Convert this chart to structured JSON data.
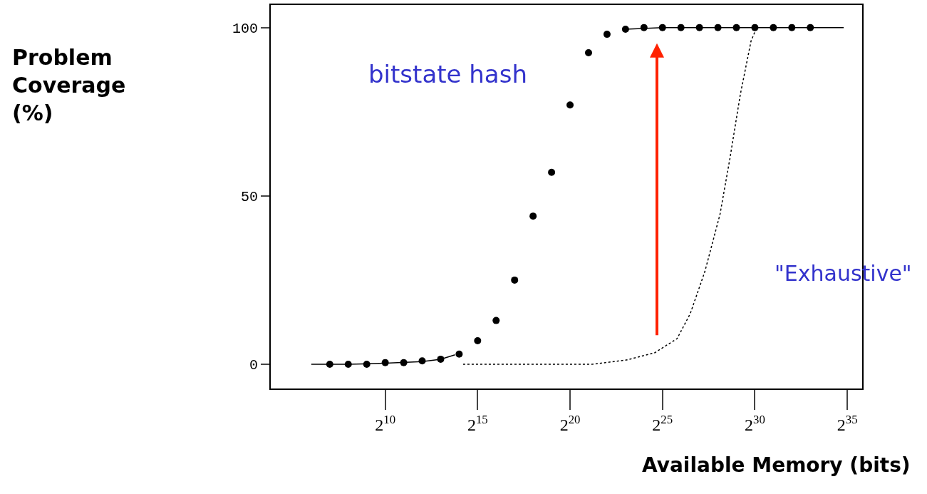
{
  "chart_data": {
    "type": "scatter",
    "xlabel": "Available Memory (bits)",
    "ylabel": "Problem\nCoverage\n(%)",
    "log": "x",
    "xlim": [
      14,
      60000000000
    ],
    "ylim": [
      -7.2,
      106.7
    ],
    "xticks": [
      {
        "value": 1024,
        "label": "2$^{10}$"
      },
      {
        "value": 32768,
        "label": "2$^{15}$"
      },
      {
        "value": 1048576,
        "label": "2$^{20}$"
      },
      {
        "value": 33554432,
        "label": "2$^{25}$"
      },
      {
        "value": 1073741824,
        "label": "2$^{30}$"
      },
      {
        "value": 34359738368,
        "label": "2$^{35}$"
      }
    ],
    "yticks": [
      0,
      50,
      100
    ],
    "series": [
      {
        "type": "line",
        "color": "#000000",
        "line_style": "solid",
        "marker": "none",
        "x": [
          64,
          256,
          1024,
          4096,
          8192,
          14000,
          6800000,
          8388608,
          33554432,
          1073741824,
          30000000000
        ],
        "values": [
          0,
          0,
          0.3,
          0.8,
          1.5,
          2.8,
          null,
          99.5,
          100,
          100,
          100
        ]
      },
      {
        "color": "#000000",
        "marker": "circle",
        "x": [
          128,
          256,
          512,
          1024,
          2048,
          4096,
          8192,
          16384,
          32768,
          65536,
          131072,
          262144,
          524288,
          1048576,
          2097152,
          4194304,
          8388608,
          16777216,
          33554432,
          67108864,
          134217728,
          268435456,
          536870912,
          1073741824,
          2147483648,
          4294967296,
          8589934592
        ],
        "values": [
          0,
          0,
          0,
          0.5,
          0.5,
          1,
          1.5,
          3,
          7,
          13,
          25,
          44,
          57,
          77,
          92.5,
          98,
          99.5,
          100,
          100,
          100,
          100,
          100,
          100,
          100,
          100,
          100,
          100
        ]
      },
      {
        "type": "line",
        "color": "#000000",
        "line_style": "dotted",
        "marker": "none",
        "x": [
          19000,
          2400000,
          9000000,
          25000000,
          58000000,
          95000000,
          165000000,
          290000000,
          420000000,
          620000000,
          930000000,
          1150000000
        ],
        "values": [
          0,
          0,
          1.3,
          3.4,
          7.6,
          15,
          27.6,
          44.5,
          61,
          80,
          96,
          100
        ]
      }
    ],
    "annotations": [
      "bitstate hash",
      "\"Exhaustive\""
    ]
  }
}
